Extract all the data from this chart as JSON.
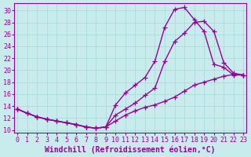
{
  "xlabel": "Windchill (Refroidissement éolien,°C)",
  "ylabel": "",
  "background_color": "#c8ecec",
  "line_color": "#990099",
  "grid_color": "#aadddd",
  "xlim": [
    -0.3,
    23.3
  ],
  "ylim": [
    9.5,
    31.2
  ],
  "xticks": [
    0,
    1,
    2,
    3,
    4,
    5,
    6,
    7,
    8,
    9,
    10,
    11,
    12,
    13,
    14,
    15,
    16,
    17,
    18,
    19,
    20,
    21,
    22,
    23
  ],
  "yticks": [
    10,
    12,
    14,
    16,
    18,
    20,
    22,
    24,
    26,
    28,
    30
  ],
  "line1_x": [
    0,
    1,
    2,
    3,
    4,
    5,
    6,
    7,
    8,
    9,
    10,
    11,
    12,
    13,
    14,
    15,
    16,
    17,
    18,
    19,
    20,
    21,
    22,
    23
  ],
  "line1_y": [
    13.5,
    12.8,
    12.2,
    11.8,
    11.5,
    11.2,
    10.9,
    10.5,
    10.3,
    10.5,
    14.2,
    16.2,
    17.5,
    18.8,
    21.5,
    27.2,
    30.2,
    30.5,
    28.5,
    26.5,
    21.0,
    20.5,
    19.2,
    19.2
  ],
  "line2_x": [
    0,
    1,
    2,
    3,
    4,
    5,
    6,
    7,
    8,
    9,
    10,
    11,
    12,
    13,
    14,
    15,
    16,
    17,
    18,
    19,
    20,
    21,
    22,
    23
  ],
  "line2_y": [
    13.5,
    12.8,
    12.2,
    11.8,
    11.5,
    11.2,
    10.9,
    10.5,
    10.3,
    10.5,
    12.5,
    13.5,
    14.5,
    15.8,
    17.0,
    21.5,
    24.8,
    26.2,
    28.0,
    28.2,
    26.5,
    21.3,
    19.5,
    19.2
  ],
  "line3_x": [
    0,
    1,
    2,
    3,
    4,
    5,
    6,
    7,
    8,
    9,
    10,
    11,
    12,
    13,
    14,
    15,
    16,
    17,
    18,
    19,
    20,
    21,
    22,
    23
  ],
  "line3_y": [
    13.5,
    12.8,
    12.2,
    11.8,
    11.5,
    11.2,
    10.9,
    10.5,
    10.3,
    10.5,
    11.5,
    12.5,
    13.2,
    13.8,
    14.2,
    14.8,
    15.5,
    16.5,
    17.5,
    18.0,
    18.5,
    19.0,
    19.3,
    19.2
  ],
  "marker": "+",
  "markersize": 4,
  "linewidth": 1.0,
  "fontsize_xlabel": 7,
  "fontsize_ticks": 6
}
